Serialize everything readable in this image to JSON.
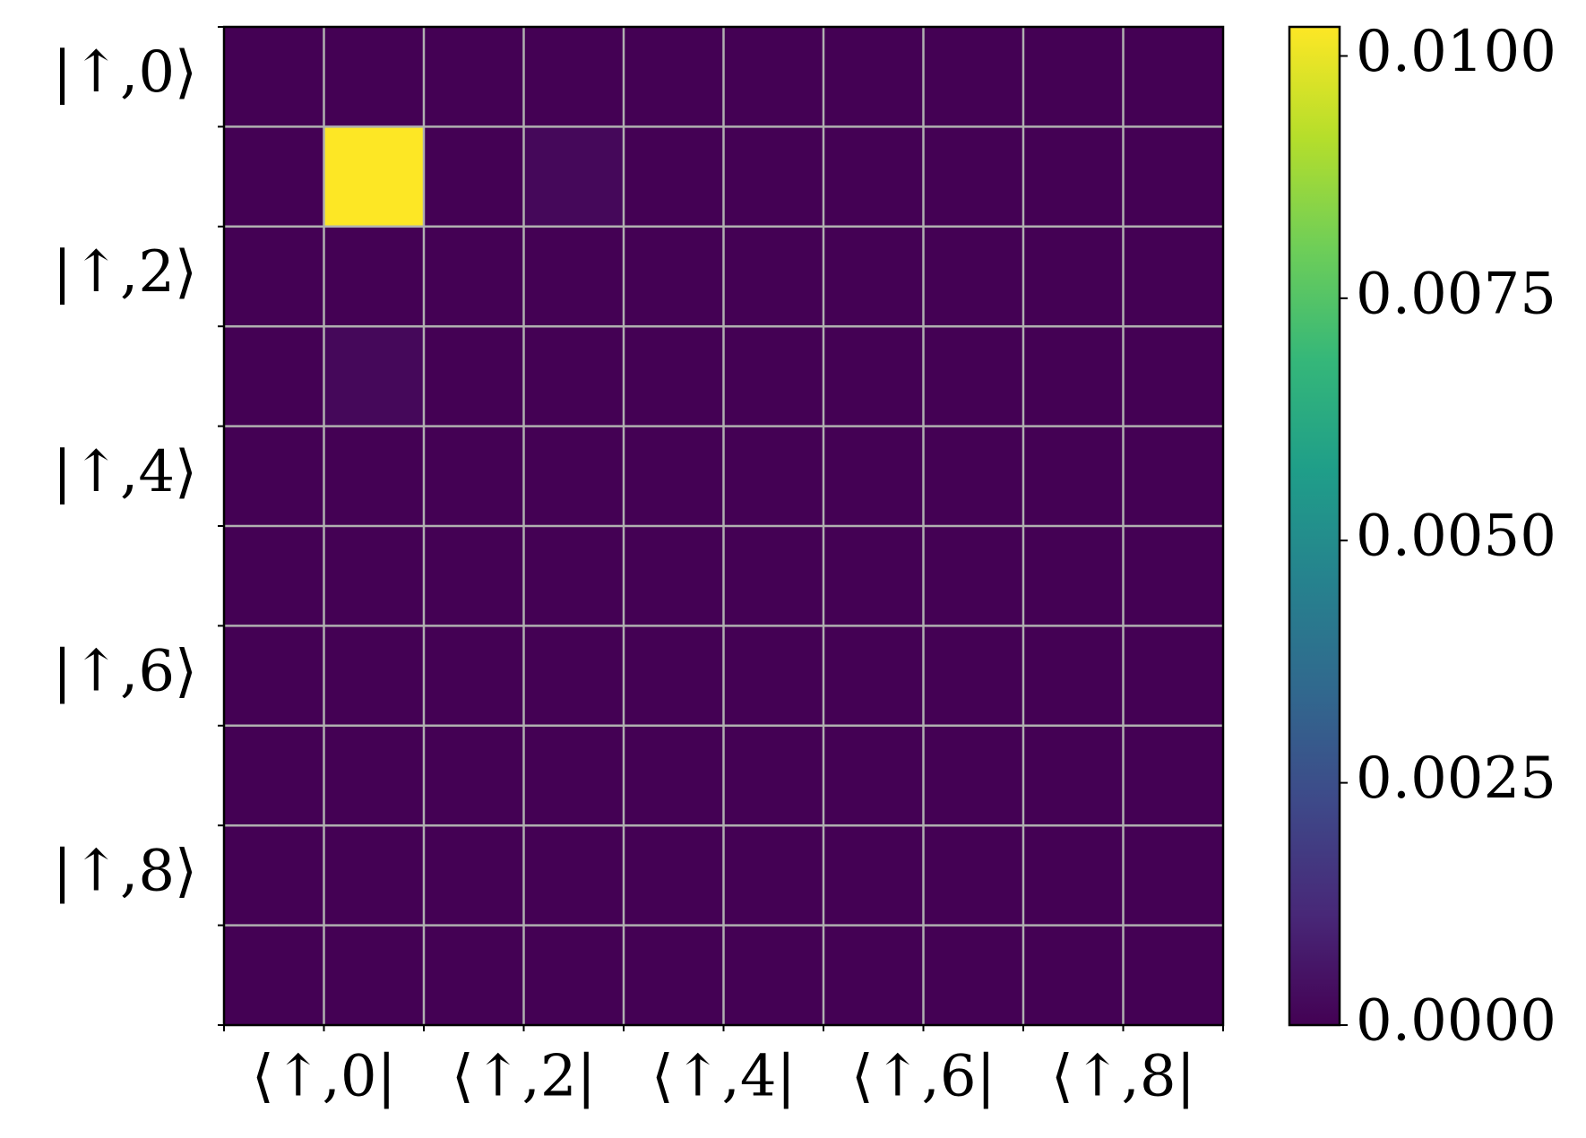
{
  "chart_data": {
    "type": "heatmap",
    "x_categories": [
      "⟨↑,0|",
      null,
      "⟨↑,2|",
      null,
      "⟨↑,4|",
      null,
      "⟨↑,6|",
      null,
      "⟨↑,8|",
      null
    ],
    "y_categories": [
      "|↑,0⟩",
      null,
      "|↑,2⟩",
      null,
      "|↑,4⟩",
      null,
      "|↑,6⟩",
      null,
      "|↑,8⟩",
      null
    ],
    "values": [
      [
        0,
        0,
        0,
        0,
        0,
        0,
        0,
        0,
        0,
        0
      ],
      [
        0,
        0.0103,
        0,
        0.0002,
        0,
        0,
        0,
        0,
        0,
        0
      ],
      [
        0,
        0,
        0,
        0,
        0,
        0,
        0,
        0,
        0,
        0
      ],
      [
        0,
        0.0002,
        0,
        0,
        0,
        0,
        0,
        0,
        0,
        0
      ],
      [
        0,
        0,
        0,
        0,
        0,
        0,
        0,
        0,
        0,
        0
      ],
      [
        0,
        0,
        0,
        0,
        0,
        0,
        0,
        0,
        0,
        0
      ],
      [
        0,
        0,
        0,
        0,
        0,
        0,
        0,
        0,
        0,
        0
      ],
      [
        0,
        0,
        0,
        0,
        0,
        0,
        0,
        0,
        0,
        0
      ],
      [
        0,
        0,
        0,
        0,
        0,
        0,
        0,
        0,
        0,
        0
      ],
      [
        0,
        0,
        0,
        0,
        0,
        0,
        0,
        0,
        0,
        0
      ]
    ],
    "colormap": "viridis",
    "grid": true,
    "clim": [
      0,
      0.0103
    ],
    "cticks": [
      {
        "value": 0,
        "label": "0.0000"
      },
      {
        "value": 0.0025,
        "label": "0.0025"
      },
      {
        "value": 0.005,
        "label": "0.0050"
      },
      {
        "value": 0.0075,
        "label": "0.0075"
      },
      {
        "value": 0.01,
        "label": "0.0100"
      }
    ]
  }
}
